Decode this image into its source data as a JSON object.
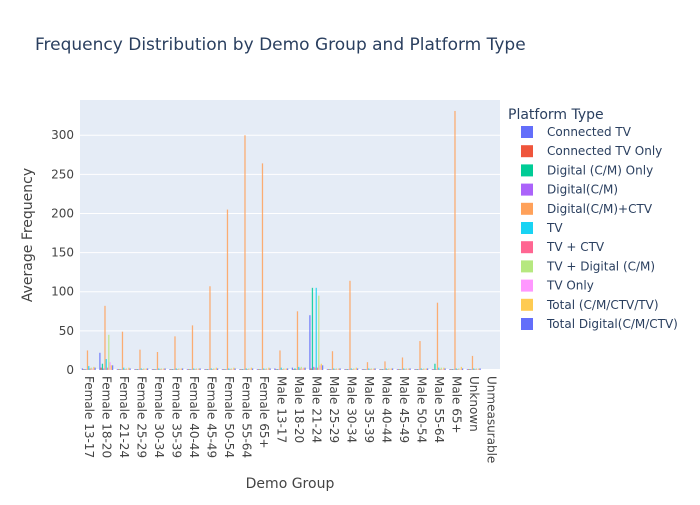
{
  "chart_data": {
    "type": "bar",
    "title": "Frequency Distribution by Demo Group and Platform Type",
    "xlabel": "Demo Group",
    "ylabel": "Average Frequency",
    "ylim": [
      0,
      345
    ],
    "yticks": [
      0,
      50,
      100,
      150,
      200,
      250,
      300
    ],
    "grid": true,
    "legend_title": "Platform Type",
    "legend_position": "right",
    "categories": [
      "Female 13-17",
      "Female 18-20",
      "Female 21-24",
      "Female 25-29",
      "Female 30-34",
      "Female 35-39",
      "Female 40-44",
      "Female 45-49",
      "Female 50-54",
      "Female 55-64",
      "Female 65+",
      "Male 13-17",
      "Male 18-20",
      "Male 21-24",
      "Male 25-29",
      "Male 30-34",
      "Male 35-39",
      "Male 40-44",
      "Male 45-49",
      "Male 50-54",
      "Male 55-64",
      "Male 65+",
      "Unknown",
      "Unmeasurable"
    ],
    "series": [
      {
        "name": "Connected TV",
        "color": "#636efa",
        "values": [
          2,
          22,
          1,
          1,
          1,
          1,
          1,
          1,
          1,
          1,
          1,
          2,
          3,
          70,
          1,
          1,
          1,
          1,
          1,
          1,
          1,
          1,
          1,
          0
        ]
      },
      {
        "name": "Connected TV Only",
        "color": "#EF553B",
        "values": [
          1,
          3,
          1,
          1,
          1,
          1,
          1,
          1,
          1,
          1,
          1,
          1,
          1,
          2,
          1,
          1,
          1,
          1,
          1,
          1,
          1,
          1,
          1,
          0
        ]
      },
      {
        "name": "Digital (C/M) Only",
        "color": "#00cc96",
        "values": [
          1,
          8,
          1,
          1,
          1,
          1,
          1,
          1,
          1,
          1,
          1,
          1,
          2,
          105,
          1,
          1,
          1,
          1,
          1,
          1,
          8,
          1,
          1,
          0
        ]
      },
      {
        "name": "Digital(C/M)",
        "color": "#ab63fa",
        "values": [
          1,
          2,
          1,
          1,
          1,
          1,
          1,
          1,
          1,
          1,
          1,
          1,
          1,
          4,
          1,
          1,
          1,
          1,
          1,
          1,
          1,
          1,
          1,
          0
        ]
      },
      {
        "name": "Digital(C/M)+CTV",
        "color": "#FFA15A",
        "values": [
          25,
          82,
          49,
          26,
          23,
          43,
          57,
          107,
          205,
          300,
          264,
          25,
          75,
          3,
          24,
          114,
          10,
          11,
          16,
          37,
          86,
          331,
          18,
          0
        ]
      },
      {
        "name": "TV",
        "color": "#19d3f3",
        "values": [
          5,
          14,
          3,
          2,
          2,
          2,
          2,
          2,
          2,
          2,
          2,
          3,
          4,
          105,
          2,
          2,
          2,
          2,
          2,
          2,
          3,
          2,
          2,
          0
        ]
      },
      {
        "name": "TV + CTV",
        "color": "#FF6692",
        "values": [
          2,
          3,
          1,
          1,
          1,
          1,
          1,
          1,
          1,
          1,
          1,
          1,
          2,
          3,
          1,
          1,
          1,
          1,
          1,
          1,
          1,
          1,
          1,
          0
        ]
      },
      {
        "name": "TV + Digital (C/M)",
        "color": "#B6E880",
        "values": [
          3,
          45,
          2,
          2,
          2,
          2,
          2,
          2,
          2,
          2,
          2,
          2,
          4,
          95,
          2,
          2,
          2,
          2,
          2,
          2,
          3,
          2,
          2,
          0
        ]
      },
      {
        "name": "TV Only",
        "color": "#FF97FF",
        "values": [
          2,
          10,
          1,
          1,
          1,
          1,
          1,
          1,
          1,
          1,
          1,
          1,
          2,
          6,
          1,
          1,
          1,
          1,
          1,
          1,
          1,
          1,
          1,
          0
        ]
      },
      {
        "name": "Total (C/M/CTV/TV)",
        "color": "#FECB52",
        "values": [
          4,
          6,
          3,
          2,
          2,
          2,
          2,
          3,
          3,
          3,
          3,
          2,
          3,
          8,
          2,
          3,
          2,
          2,
          2,
          2,
          3,
          4,
          2,
          0
        ]
      },
      {
        "name": "Total Digital(C/M/CTV)",
        "color": "#636efa",
        "values": [
          3,
          6,
          2,
          2,
          2,
          2,
          2,
          2,
          2,
          2,
          2,
          2,
          3,
          6,
          2,
          2,
          2,
          2,
          2,
          2,
          2,
          2,
          2,
          0
        ]
      }
    ]
  }
}
